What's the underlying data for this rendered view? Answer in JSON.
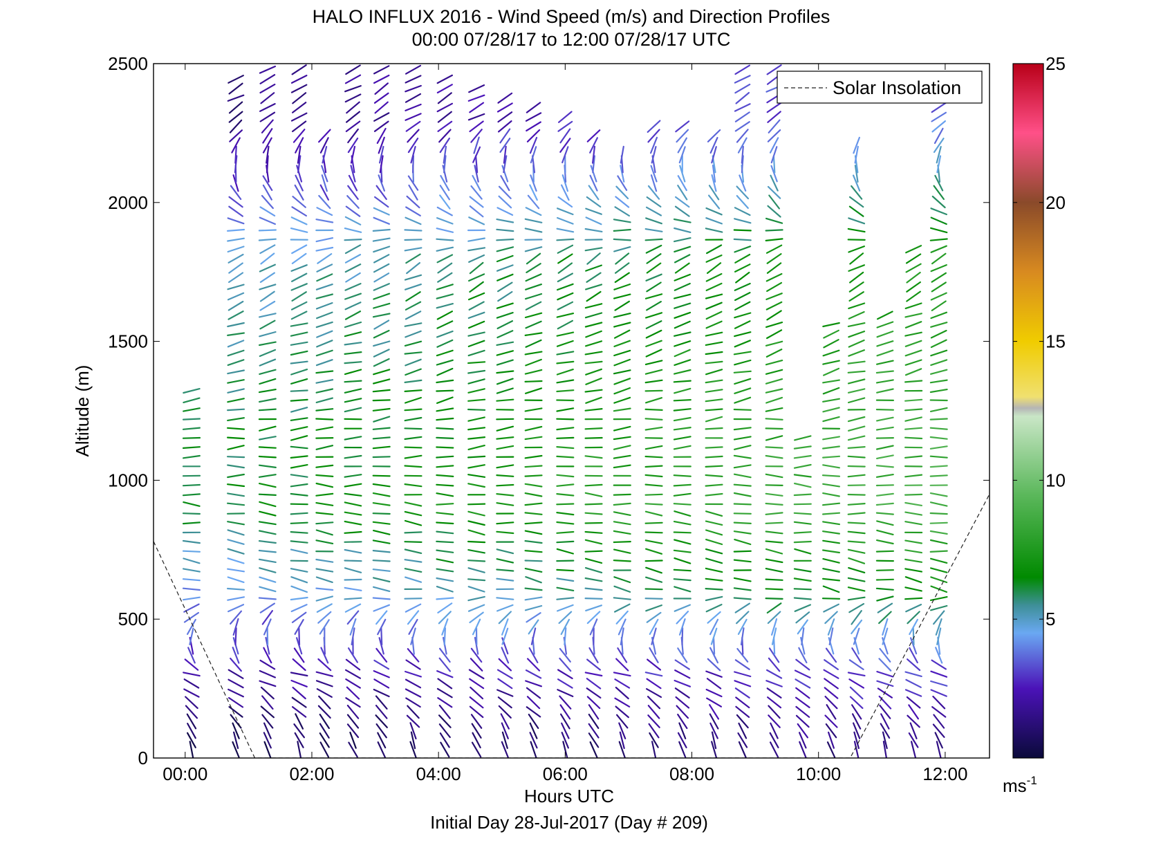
{
  "chart_data": {
    "type": "scatter",
    "subtype": "wind-barb-profile",
    "title": "HALO INFLUX 2016 - Wind Speed (m/s) and Direction Profiles",
    "subtitle": "00:00 07/28/17 to 12:00 07/28/17  UTC",
    "xlabel": "Hours UTC",
    "xlabel2": "Initial Day 28-Jul-2017 (Day # 209)",
    "ylabel": "Altitude (m)",
    "xlim": [
      -0.5,
      12.7
    ],
    "ylim": [
      0,
      2500
    ],
    "x_ticks": [
      0,
      2,
      4,
      6,
      8,
      10,
      12
    ],
    "x_tick_labels": [
      "00:00",
      "02:00",
      "04:00",
      "06:00",
      "08:00",
      "10:00",
      "12:00"
    ],
    "y_ticks": [
      0,
      500,
      1000,
      1500,
      2000,
      2500
    ],
    "y_tick_labels": [
      "0",
      "500",
      "1000",
      "1500",
      "2000",
      "2500"
    ],
    "grid": false,
    "legend": {
      "position": "top-right",
      "entries": [
        {
          "label": "Solar Insolation",
          "style": "dashed",
          "color": "#000000"
        }
      ]
    },
    "colorbar": {
      "range": [
        0,
        25
      ],
      "ticks": [
        5,
        10,
        15,
        20,
        25
      ],
      "tick_labels": [
        "5",
        "10",
        "15",
        "20",
        "25"
      ],
      "unit_base": "ms",
      "unit_exp": "-1",
      "stops": [
        {
          "v": 0.0,
          "color": "#0a0a3a"
        },
        {
          "v": 2.5,
          "color": "#4b12b8"
        },
        {
          "v": 4.5,
          "color": "#6aa8f2"
        },
        {
          "v": 5.5,
          "color": "#3e8f98"
        },
        {
          "v": 6.5,
          "color": "#008a00"
        },
        {
          "v": 9.5,
          "color": "#5cb85c"
        },
        {
          "v": 12.3,
          "color": "#c9e6c6"
        },
        {
          "v": 12.6,
          "color": "#b5b5b5"
        },
        {
          "v": 13.0,
          "color": "#f0e070"
        },
        {
          "v": 15.0,
          "color": "#f0cc00"
        },
        {
          "v": 17.5,
          "color": "#d88a20"
        },
        {
          "v": 20.0,
          "color": "#8a4a2a"
        },
        {
          "v": 22.5,
          "color": "#ff5088"
        },
        {
          "v": 25.0,
          "color": "#b80018"
        }
      ]
    },
    "solar_insolation": {
      "x": [
        -0.5,
        1.1,
        10.5,
        12.7
      ],
      "y": [
        780,
        0,
        0,
        950
      ]
    },
    "profile_times": [
      0.1,
      0.8,
      1.3,
      1.8,
      2.2,
      2.65,
      3.1,
      3.6,
      4.1,
      4.6,
      5.05,
      5.5,
      6.0,
      6.45,
      6.9,
      7.4,
      7.85,
      8.35,
      8.8,
      9.3,
      9.75,
      10.2,
      10.6,
      11.05,
      11.5,
      11.9
    ],
    "profile_tops": [
      1340,
      2460,
      2490,
      2490,
      2250,
      2500,
      2500,
      2480,
      2450,
      2420,
      2390,
      2360,
      2330,
      2250,
      2200,
      2300,
      2280,
      2250,
      2490,
      2490,
      1180,
      1560,
      2220,
      1600,
      1850,
      2380
    ],
    "wind_samples": [
      {
        "z": 50,
        "speed": 1.0,
        "dir": 340
      },
      {
        "z": 300,
        "speed": 2.5,
        "dir": 290
      },
      {
        "z": 600,
        "speed": 5.5,
        "dir": 100
      },
      {
        "z": 900,
        "speed": 7.5,
        "dir": 95
      },
      {
        "z": 1300,
        "speed": 7.0,
        "dir": 80
      },
      {
        "z": 1800,
        "speed": 6.0,
        "dir": 60
      },
      {
        "z": 2300,
        "speed": 2.5,
        "dir": 240
      }
    ]
  }
}
